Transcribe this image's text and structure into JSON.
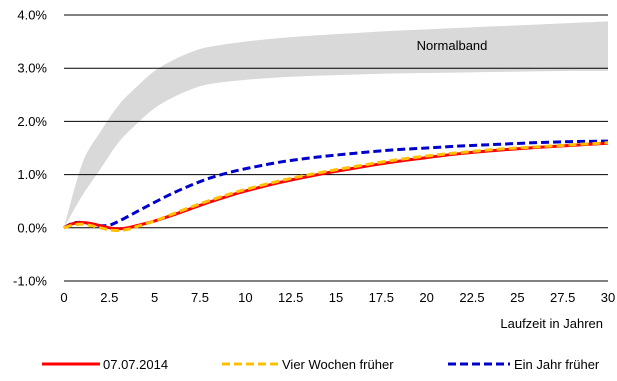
{
  "chart_data": {
    "type": "line",
    "title": "",
    "xlabel": "Laufzeit in Jahren",
    "ylabel": "",
    "xlim": [
      0,
      30
    ],
    "ylim": [
      -1.0,
      4.0
    ],
    "x_ticks": [
      "0",
      "2.5",
      "5",
      "7.5",
      "10",
      "12.5",
      "15",
      "17.5",
      "20",
      "22.5",
      "25",
      "27.5",
      "30"
    ],
    "y_ticks": [
      "-1.0%",
      "0.0%",
      "1.0%",
      "2.0%",
      "3.0%",
      "4.0%"
    ],
    "grid": "horizontal",
    "legend_position": "bottom",
    "band": {
      "label": "Normalband",
      "color": "#d9d9d9",
      "x": [
        0,
        1,
        2,
        3,
        4,
        5,
        6,
        7,
        8,
        10,
        12,
        14,
        16,
        18,
        20,
        22,
        24,
        26,
        28,
        30
      ],
      "lower": [
        0.0,
        0.6,
        1.1,
        1.6,
        1.95,
        2.25,
        2.45,
        2.6,
        2.7,
        2.78,
        2.83,
        2.86,
        2.88,
        2.9,
        2.91,
        2.92,
        2.93,
        2.94,
        2.95,
        2.95
      ],
      "upper": [
        0.0,
        1.2,
        1.8,
        2.3,
        2.65,
        2.95,
        3.15,
        3.3,
        3.4,
        3.5,
        3.57,
        3.62,
        3.66,
        3.7,
        3.73,
        3.76,
        3.79,
        3.82,
        3.85,
        3.88
      ]
    },
    "series": [
      {
        "name": "07.07.2014",
        "color": "#ff0000",
        "dash": "solid",
        "x": [
          0,
          0.5,
          1,
          1.5,
          2,
          2.5,
          3,
          3.5,
          4,
          5,
          6,
          7,
          8,
          9,
          10,
          12,
          14,
          16,
          18,
          20,
          22,
          24,
          26,
          28,
          30
        ],
        "values": [
          0.0,
          0.08,
          0.1,
          0.08,
          0.04,
          0.0,
          -0.02,
          0.0,
          0.04,
          0.13,
          0.24,
          0.36,
          0.48,
          0.59,
          0.69,
          0.86,
          1.0,
          1.12,
          1.23,
          1.32,
          1.4,
          1.46,
          1.51,
          1.55,
          1.59
        ]
      },
      {
        "name": "Vier Wochen früher",
        "color": "#ffc000",
        "dash": "dashed",
        "x": [
          0,
          0.5,
          1,
          1.5,
          2,
          2.5,
          3,
          3.5,
          4,
          5,
          6,
          7,
          8,
          9,
          10,
          12,
          14,
          16,
          18,
          20,
          22,
          24,
          26,
          28,
          30
        ],
        "values": [
          0.0,
          0.05,
          0.07,
          0.04,
          0.0,
          -0.04,
          -0.05,
          -0.03,
          0.02,
          0.13,
          0.26,
          0.39,
          0.51,
          0.62,
          0.72,
          0.89,
          1.03,
          1.15,
          1.26,
          1.35,
          1.42,
          1.48,
          1.52,
          1.56,
          1.6
        ]
      },
      {
        "name": "Ein Jahr früher",
        "color": "#0000cc",
        "dash": "dashed",
        "x": [
          0,
          0.5,
          1,
          1.5,
          2,
          2.5,
          3,
          4,
          5,
          6,
          7,
          8,
          9,
          10,
          12,
          14,
          16,
          18,
          20,
          22,
          24,
          26,
          28,
          30
        ],
        "values": [
          0.0,
          0.09,
          0.1,
          0.07,
          0.04,
          0.05,
          0.12,
          0.3,
          0.48,
          0.65,
          0.8,
          0.93,
          1.03,
          1.11,
          1.24,
          1.33,
          1.4,
          1.46,
          1.5,
          1.54,
          1.57,
          1.6,
          1.62,
          1.63
        ]
      }
    ]
  }
}
